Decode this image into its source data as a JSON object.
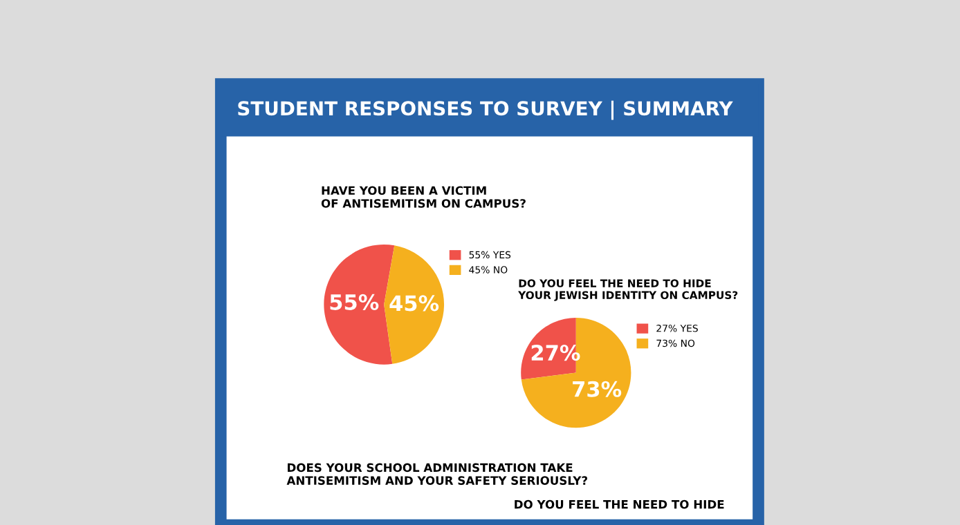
{
  "chart_data": [
    {
      "type": "pie",
      "title": "STUDENT RESPONSES TO SURVEY | SUMMARY",
      "subtitle": "HAVE YOU BEEN A VICTIM\nOF ANTISEMITISM ON CAMPUS?",
      "categories": [
        "55% YES",
        "45% NO"
      ],
      "values": [
        55,
        45
      ],
      "value_labels": [
        "55%",
        "45%"
      ],
      "colors": [
        "#f0524a",
        "#f5b01e"
      ],
      "legend": "top right"
    },
    {
      "type": "pie",
      "title": "DO YOU FEEL THE NEED TO HIDE\nYOUR JEWISH IDENTITY ON CAMPUS?",
      "categories": [
        "27% YES",
        "73% NO"
      ],
      "values": [
        27,
        73
      ],
      "value_labels": [
        "27%",
        "73%"
      ],
      "colors": [
        "#f0524a",
        "#f5b01e"
      ],
      "legend": "top right"
    },
    {
      "type": "other",
      "annotations": [
        "DOES YOUR SCHOOL ADMINISTRATION TAKE\nANTISEMITISM AND YOUR SAFETY SERIOUSLY?",
        "DO YOU FEEL THE NEED TO HIDE"
      ]
    }
  ]
}
